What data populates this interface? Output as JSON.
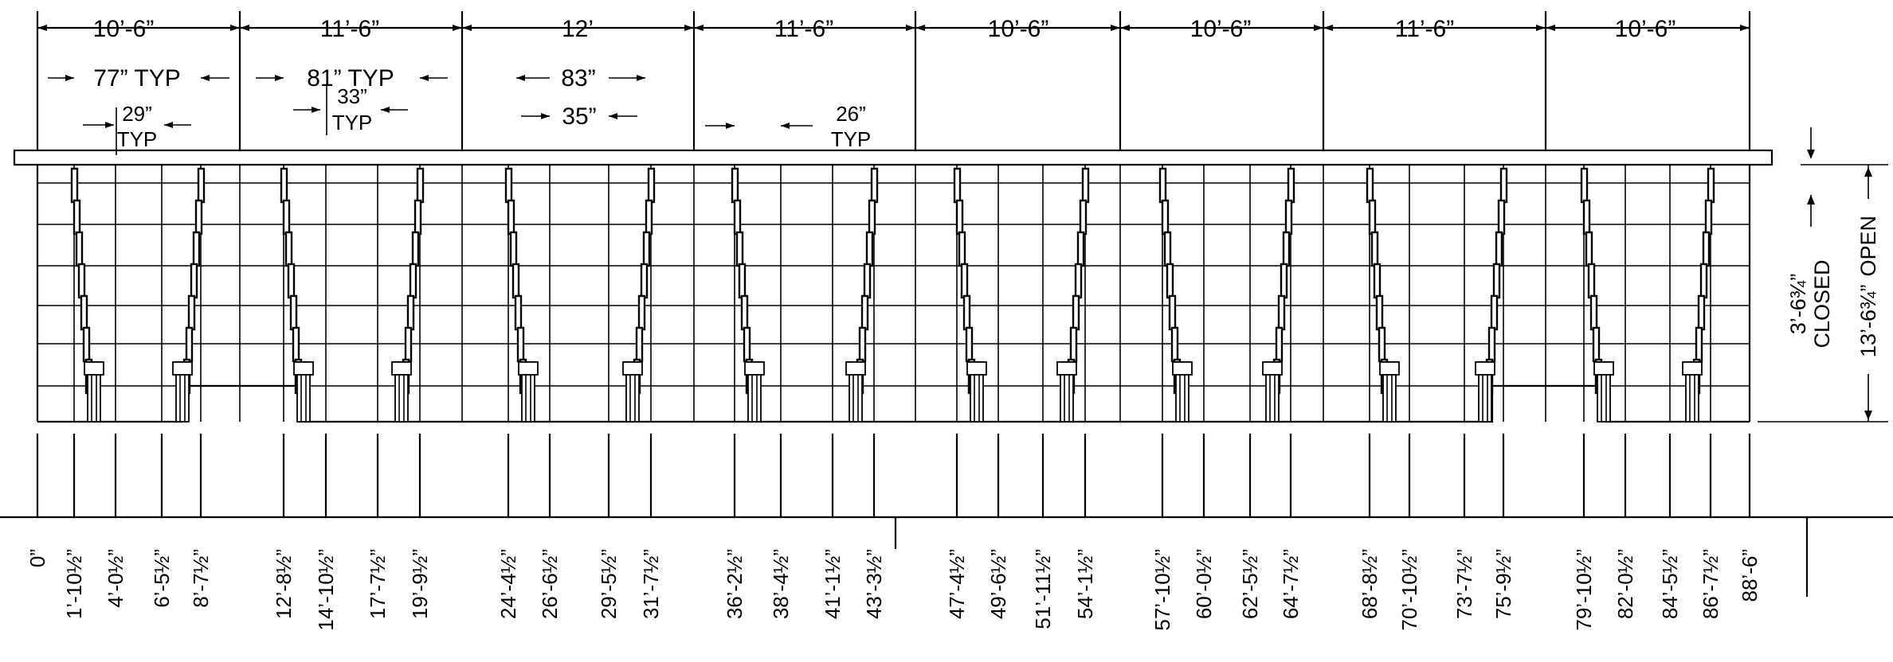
{
  "bay_widths": [
    "10’-6”",
    "11’-6”",
    "12’",
    "11’-6”",
    "10’-6”",
    "10’-6”",
    "11’-6”",
    "10’-6”"
  ],
  "opening_notes": {
    "opening_77": "77” TYP",
    "opening_81": "81” TYP",
    "opening_83": "83”",
    "jamb_29": "29”",
    "jamb_29_typ": "TYP",
    "jamb_33": "33”",
    "jamb_33_typ": "TYP",
    "jamb_35": "35”",
    "jamb_26": "26”",
    "jamb_26_typ": "TYP"
  },
  "height_labels": {
    "closed_value": "3’-6¾”",
    "closed_word": "CLOSED",
    "open_value": "13’-6¾”",
    "open_word": "OPEN"
  },
  "positions": [
    "0”",
    "1’-10½”",
    "4’-0½”",
    "6’-5½”",
    "8’-7½”",
    "12’-8½”",
    "14’-10½”",
    "17’-7½”",
    "19’-9½”",
    "24’-4½”",
    "26’-6½”",
    "29’-5½”",
    "31’-7½”",
    "36’-2½”",
    "38’-4½”",
    "41’-1½”",
    "43’-3½”",
    "47’-4½”",
    "49’-6½”",
    "51’-11½”",
    "54’-1½”",
    "57’-10½”",
    "60’-0½”",
    "62’-5½”",
    "64’-7½”",
    "68’-8½”",
    "70’-10½”",
    "73’-7½”",
    "75’-9½”",
    "79’-10½”",
    "82’-0½”",
    "84’-5½”",
    "86’-7½”",
    "88’-6”"
  ]
}
